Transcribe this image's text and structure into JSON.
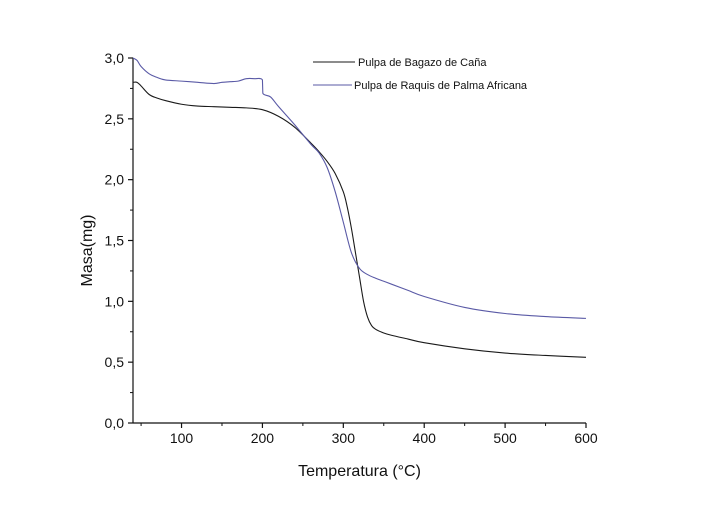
{
  "chart_data": {
    "type": "line",
    "xlabel": "Temperatura (°C)",
    "ylabel": "Masa(mg)",
    "xlim": [
      40,
      600
    ],
    "ylim": [
      0,
      3.0
    ],
    "x_ticks": [
      100,
      200,
      300,
      400,
      500,
      600
    ],
    "y_ticks": [
      0.0,
      0.5,
      1.0,
      1.5,
      2.0,
      2.5,
      3.0
    ],
    "y_tick_labels": [
      "0,0",
      "0,5",
      "1,0",
      "1,5",
      "2,0",
      "2,5",
      "3,0"
    ],
    "grid": false,
    "legend_position": "top-right",
    "series": [
      {
        "name": "Pulpa de Bagazo de Caña",
        "color": "#1a1a1a",
        "x": [
          40,
          45,
          50,
          60,
          70,
          80,
          100,
          120,
          140,
          160,
          180,
          200,
          220,
          240,
          260,
          270,
          280,
          290,
          300,
          305,
          310,
          315,
          320,
          325,
          330,
          335,
          340,
          350,
          360,
          380,
          400,
          450,
          500,
          550,
          600
        ],
        "y": [
          2.8,
          2.8,
          2.77,
          2.7,
          2.67,
          2.65,
          2.62,
          2.605,
          2.6,
          2.595,
          2.59,
          2.575,
          2.52,
          2.43,
          2.3,
          2.23,
          2.15,
          2.05,
          1.9,
          1.77,
          1.6,
          1.4,
          1.2,
          1.0,
          0.87,
          0.8,
          0.77,
          0.74,
          0.72,
          0.69,
          0.66,
          0.61,
          0.575,
          0.555,
          0.54
        ]
      },
      {
        "name": "Pulpa de Raquis de  Palma Africana",
        "color": "#5a5aa6",
        "x": [
          40,
          45,
          50,
          60,
          70,
          80,
          100,
          120,
          140,
          150,
          160,
          170,
          180,
          190,
          200,
          200.5,
          210,
          220,
          240,
          260,
          270,
          280,
          290,
          300,
          310,
          320,
          330,
          340,
          350,
          360,
          380,
          400,
          450,
          500,
          550,
          600
        ],
        "y": [
          3.0,
          2.98,
          2.93,
          2.87,
          2.84,
          2.82,
          2.81,
          2.8,
          2.79,
          2.8,
          2.805,
          2.81,
          2.83,
          2.83,
          2.82,
          2.71,
          2.68,
          2.6,
          2.45,
          2.29,
          2.22,
          2.1,
          1.9,
          1.65,
          1.4,
          1.27,
          1.22,
          1.19,
          1.165,
          1.14,
          1.09,
          1.04,
          0.95,
          0.9,
          0.875,
          0.86
        ]
      }
    ]
  }
}
